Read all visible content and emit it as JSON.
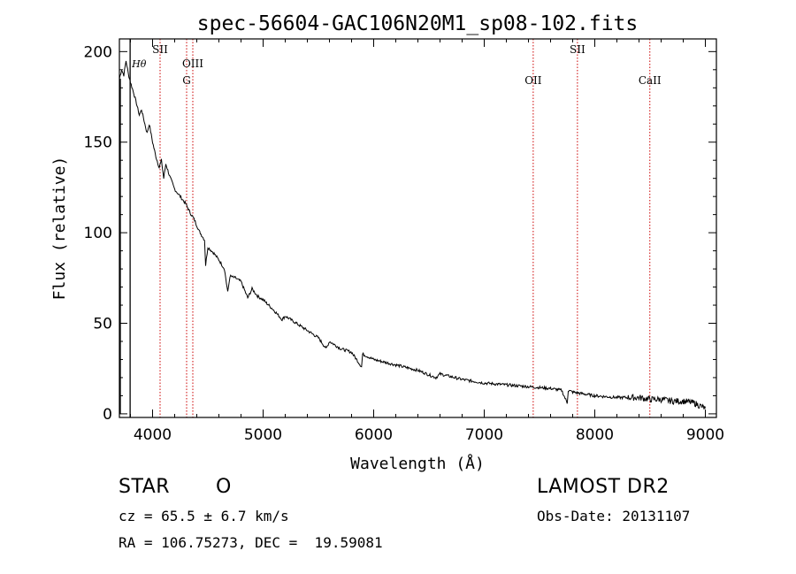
{
  "chart_data": {
    "type": "line",
    "title": "spec-56604-GAC106N20M1_sp08-102.fits",
    "xlabel": "Wavelength (Å)",
    "ylabel": "Flux (relative)",
    "xlim": [
      3700,
      9100
    ],
    "ylim": [
      -2,
      207
    ],
    "xticks": [
      4000,
      5000,
      6000,
      7000,
      8000,
      9000
    ],
    "yticks": [
      0,
      50,
      100,
      150,
      200
    ],
    "grid": false,
    "series": [
      {
        "name": "spectrum",
        "color": "#000000",
        "x": [
          3700,
          3720,
          3740,
          3760,
          3780,
          3800,
          3830,
          3860,
          3880,
          3900,
          3930,
          3950,
          3970,
          4000,
          4030,
          4060,
          4080,
          4101,
          4120,
          4150,
          4200,
          4250,
          4300,
          4340,
          4380,
          4420,
          4450,
          4470,
          4480,
          4500,
          4550,
          4600,
          4650,
          4680,
          4700,
          4750,
          4800,
          4861,
          4900,
          4950,
          5000,
          5100,
          5172,
          5200,
          5300,
          5400,
          5500,
          5570,
          5600,
          5700,
          5800,
          5890,
          5900,
          6000,
          6200,
          6400,
          6563,
          6600,
          6800,
          7000,
          7200,
          7400,
          7600,
          7700,
          7750,
          7760,
          7800,
          7900,
          8000,
          8200,
          8400,
          8500,
          8600,
          8700,
          8800,
          8900,
          9000
        ],
        "values": [
          185,
          190,
          187,
          195,
          188,
          183,
          177,
          170,
          165,
          168,
          160,
          155,
          160,
          150,
          142,
          136,
          140,
          130,
          138,
          132,
          124,
          120,
          116,
          111,
          107,
          101,
          98,
          96,
          82,
          92,
          89,
          85,
          80,
          67,
          76,
          75,
          73,
          64,
          69,
          65,
          63,
          57,
          52,
          54,
          50,
          46,
          42,
          36,
          40,
          36,
          34,
          26,
          33,
          30,
          27,
          24,
          20,
          22,
          19,
          17,
          16,
          15,
          14,
          13,
          6,
          13,
          12,
          11,
          10,
          9,
          9,
          8,
          8,
          7,
          7,
          6,
          3
        ]
      }
    ],
    "lines": [
      {
        "label": "Hθ",
        "x": 3797,
        "style": "solid-black"
      },
      {
        "label": "SII",
        "x": 4068,
        "style": "dotted-red"
      },
      {
        "label": "OIII",
        "x": 4364,
        "style": "dotted-red"
      },
      {
        "label": "G",
        "x": 4308,
        "style": "dotted-red"
      },
      {
        "label": "OII",
        "x": 7443,
        "style": "dotted-red"
      },
      {
        "label": "SII",
        "x": 7843,
        "style": "dotted-red"
      },
      {
        "label": "CaII",
        "x": 8498,
        "style": "dotted-red"
      }
    ]
  },
  "info": {
    "class_label": "STAR",
    "subclass_label": "O",
    "survey": "LAMOST DR2",
    "redshift": "cz = 65.5 ± 6.7 km/s",
    "obs_date": "Obs-Date: 20131107",
    "coords": "RA = 106.75273, DEC =  19.59081"
  },
  "colors": {
    "line_marker": "#cc0000",
    "spectrum": "#000000"
  }
}
